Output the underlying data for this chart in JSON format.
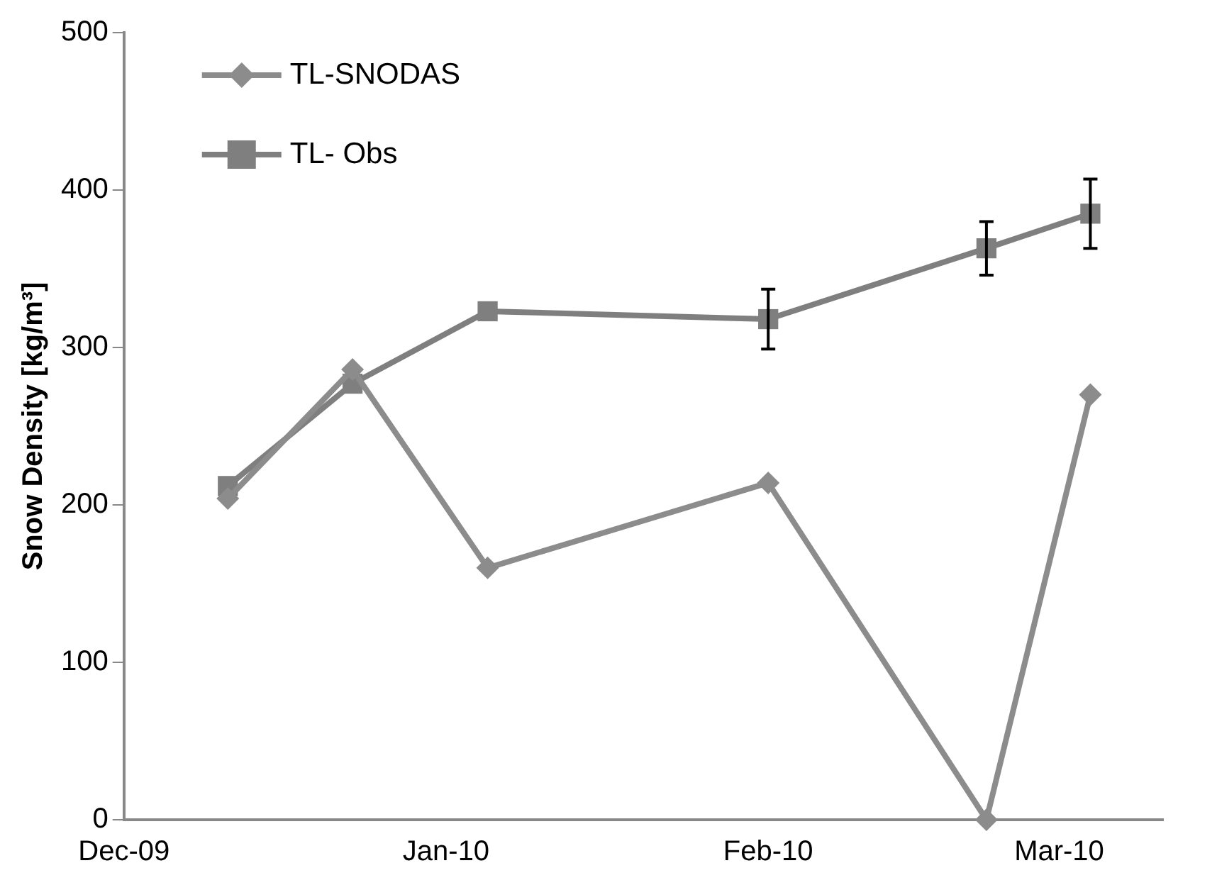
{
  "chart_data": {
    "type": "line",
    "ylabel": "Snow Density [kg/m³]",
    "x": [
      "2009-12-11",
      "2009-12-23",
      "2010-01-05",
      "2010-02-01",
      "2010-02-22",
      "2010-03-04"
    ],
    "series": [
      {
        "name": "TL-SNODAS",
        "color": "#8c8c8c",
        "marker": "diamond",
        "values": [
          204,
          286,
          160,
          214,
          0,
          270
        ]
      },
      {
        "name": "TL- Obs",
        "color": "#7f7f7f",
        "marker": "square",
        "values": [
          212,
          277,
          323,
          318,
          363,
          385
        ],
        "errors": [
          null,
          null,
          null,
          19,
          17,
          22
        ]
      }
    ],
    "xlim": [
      "2009-12-01",
      "2010-03-11"
    ],
    "xticks": [
      {
        "value": "2009-12-01",
        "label": "Dec-09"
      },
      {
        "value": "2010-01-01",
        "label": "Jan-10"
      },
      {
        "value": "2010-02-01",
        "label": "Feb-10"
      },
      {
        "value": "2010-03-01",
        "label": "Mar-10"
      }
    ],
    "ylim": [
      0,
      500
    ],
    "yticks": [
      0,
      100,
      200,
      300,
      400,
      500
    ],
    "grid": false,
    "legend": "top left",
    "line_style": "solid"
  }
}
